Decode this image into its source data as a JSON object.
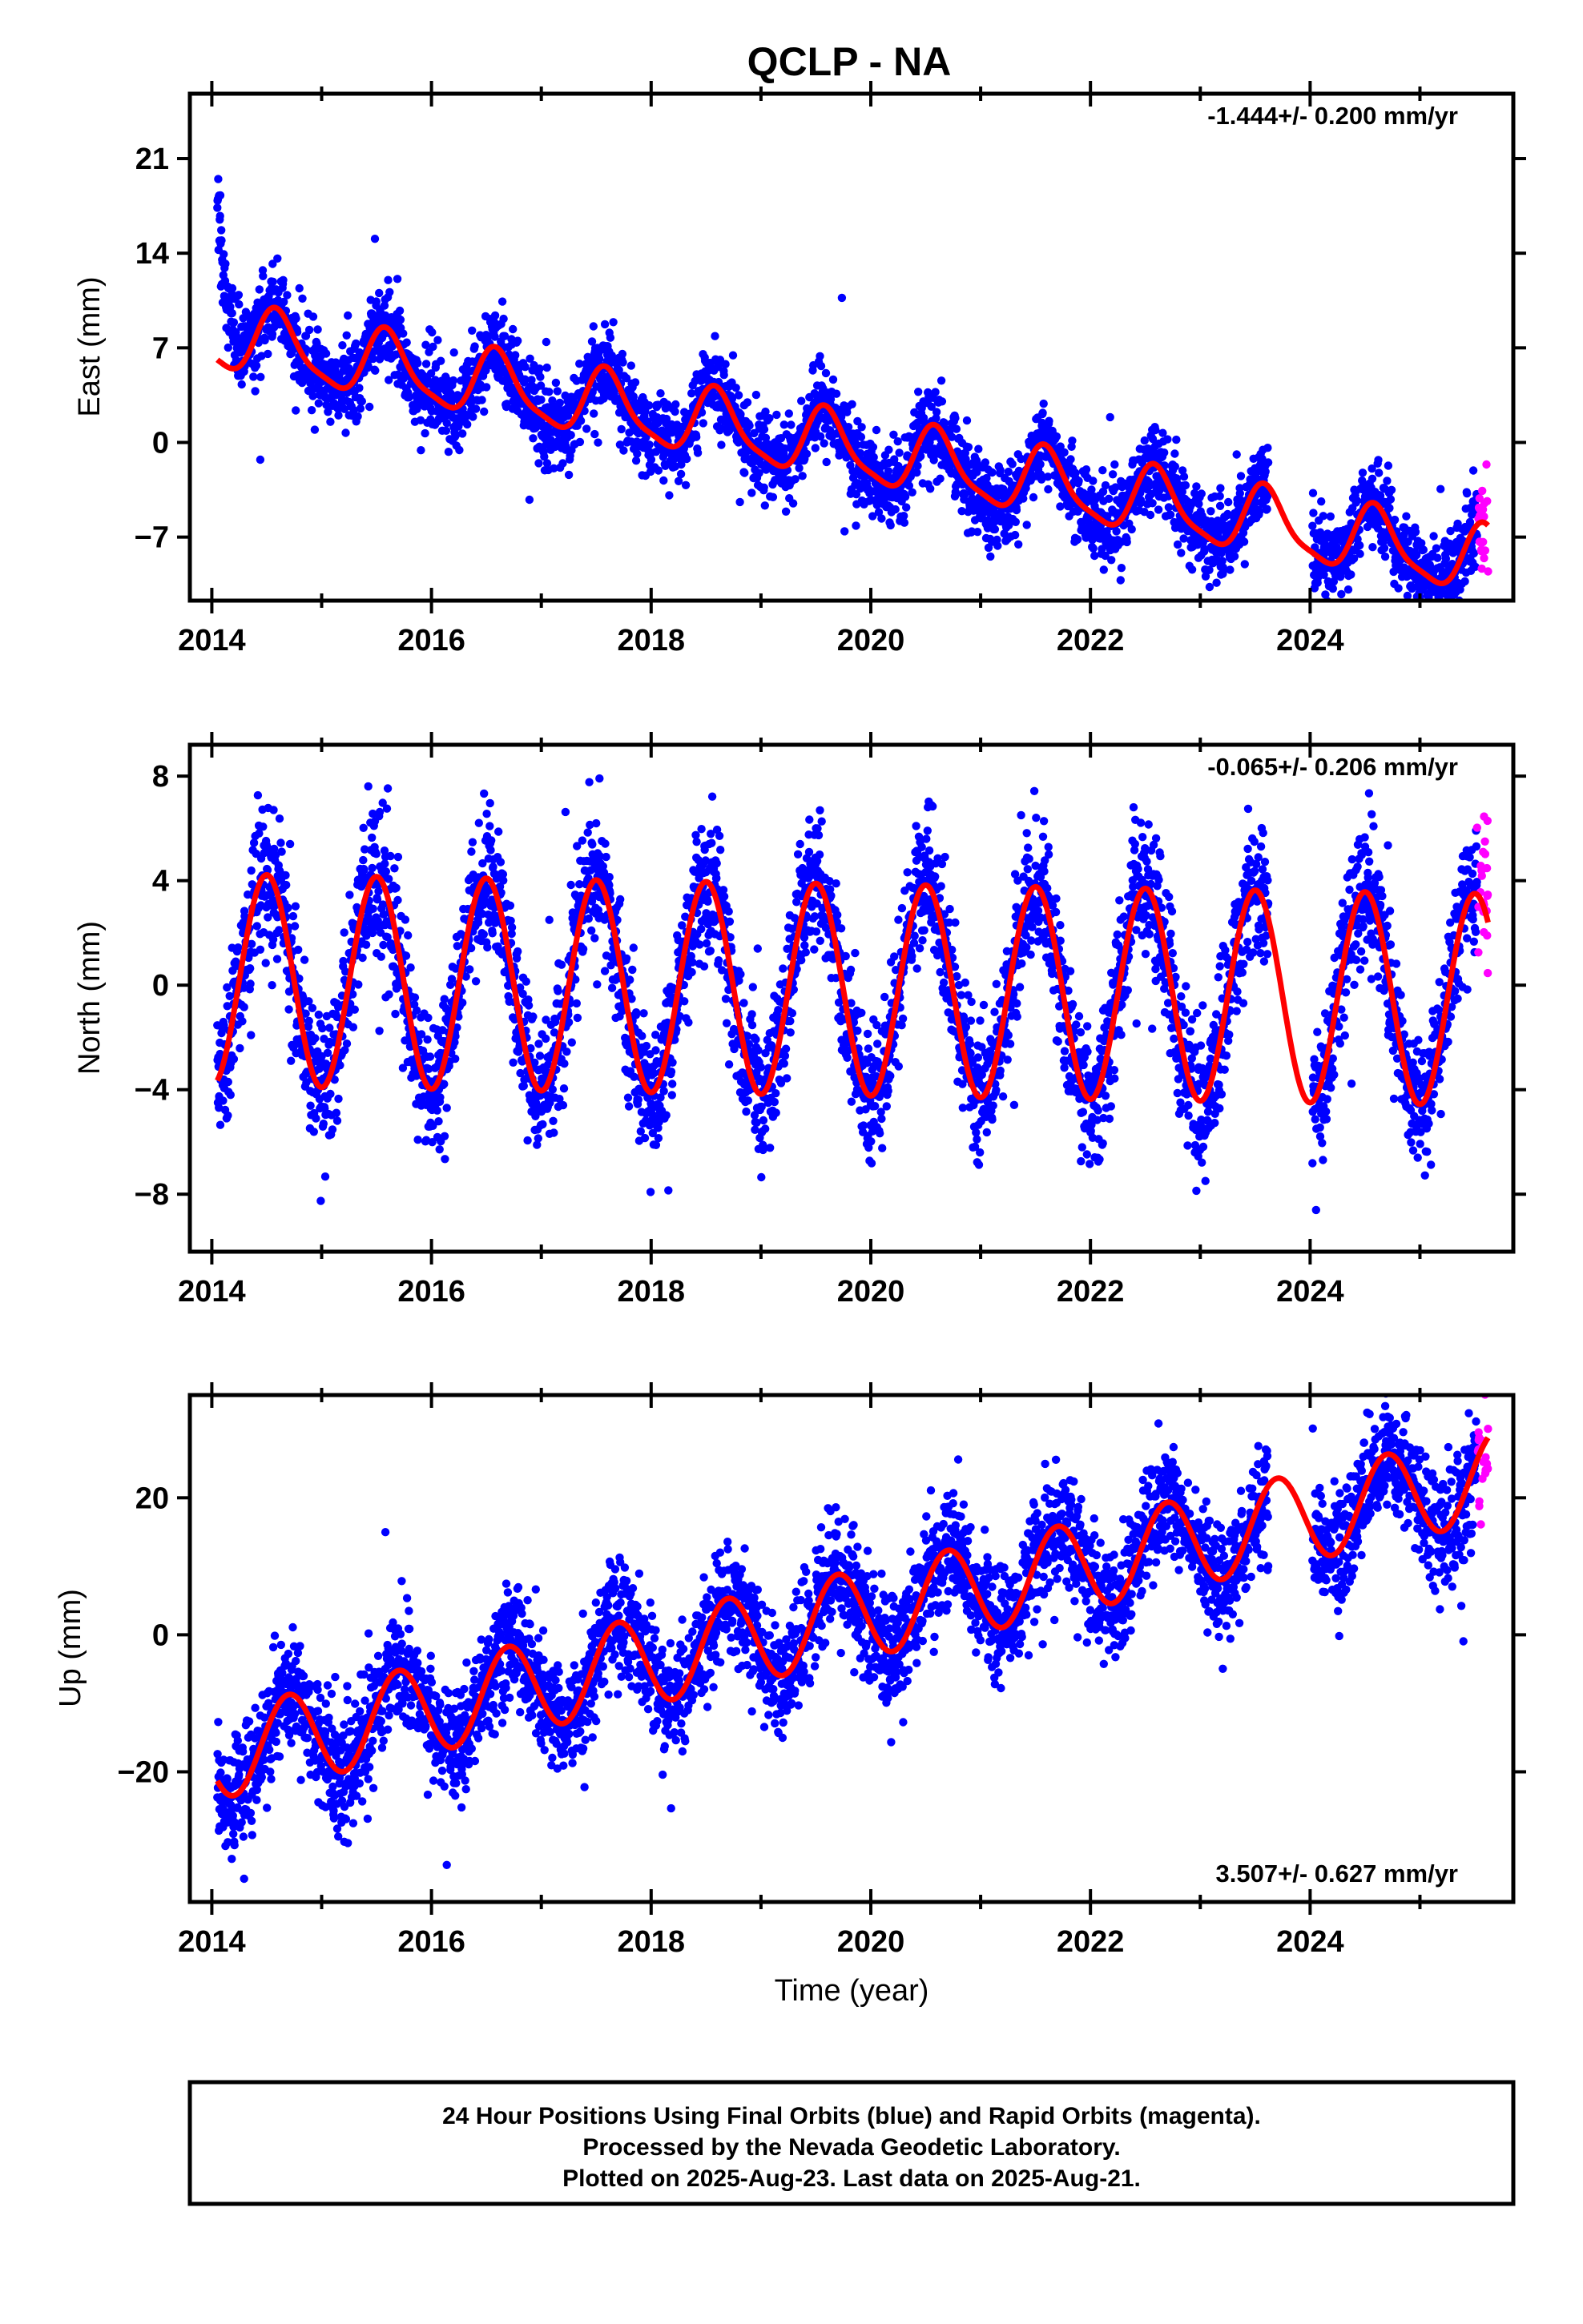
{
  "title": "QCLP - NA",
  "colors": {
    "final": "#0000ff",
    "rapid": "#ff00ff",
    "model": "#ff0000",
    "frame": "#000000"
  },
  "chart_data": [
    {
      "type": "scatter",
      "component": "east",
      "ylabel": "East (mm)",
      "xlabel": "",
      "rate": "-1.444+/- 0.200 mm/yr",
      "xlim": [
        2013.8,
        2025.85
      ],
      "ylim": [
        -11.7,
        25.8
      ],
      "yticks": [
        21,
        14,
        7,
        0,
        -7
      ],
      "xticks": [
        2014,
        2016,
        2018,
        2020,
        2022,
        2024
      ],
      "trend": {
        "t0": 2014.05,
        "a": 7.8,
        "b": -1.444,
        "amp": 2.4,
        "peak": 0.6,
        "amp2": 0.6,
        "peak2": 0.55
      },
      "noise": 1.5,
      "early_transient": {
        "amp": 14,
        "tau": 0.1
      },
      "gaps": [
        [
          2023.62,
          2024.02
        ]
      ],
      "rapid_range": [
        2025.52,
        2025.62
      ],
      "rapid_count": 20
    },
    {
      "type": "scatter",
      "component": "north",
      "ylabel": "North (mm)",
      "xlabel": "",
      "rate": "-0.065+/- 0.206 mm/yr",
      "xlim": [
        2013.8,
        2025.85
      ],
      "ylim": [
        -10.2,
        9.2
      ],
      "yticks": [
        8,
        4,
        0,
        -4,
        -8
      ],
      "xticks": [
        2014,
        2016,
        2018,
        2020,
        2022,
        2024
      ],
      "trend": {
        "t0": 2014.05,
        "a": 0.2,
        "b": -0.065,
        "amp": 4.05,
        "peak": 0.5,
        "amp2": 0,
        "peak2": 0
      },
      "noise": 1.3,
      "gaps": [
        [
          2023.62,
          2024.02
        ]
      ],
      "rapid_range": [
        2025.52,
        2025.62
      ],
      "rapid_count": 22
    },
    {
      "type": "scatter",
      "component": "up",
      "ylabel": "Up (mm)",
      "xlabel": "Time (year)",
      "rate": "3.507+/- 0.627 mm/yr",
      "xlim": [
        2013.8,
        2025.85
      ],
      "ylim": [
        -39,
        35
      ],
      "yticks": [
        20,
        0,
        -20
      ],
      "xticks": [
        2014,
        2016,
        2018,
        2020,
        2022,
        2024
      ],
      "trend": {
        "t0": 2014.05,
        "a": -17.5,
        "b": 3.507,
        "amp": 6.5,
        "peak": 0.7,
        "amp2": 0,
        "peak2": 0
      },
      "noise": 4.2,
      "gaps": [
        [
          2023.62,
          2024.02
        ]
      ],
      "rapid_range": [
        2025.52,
        2025.62
      ],
      "rapid_count": 22
    }
  ],
  "footer": {
    "line1": "24 Hour Positions Using Final Orbits (blue) and Rapid Orbits (magenta).",
    "line2": "Processed by the Nevada Geodetic Laboratory.",
    "line3": "Plotted on 2025-Aug-23. Last data on 2025-Aug-21."
  }
}
